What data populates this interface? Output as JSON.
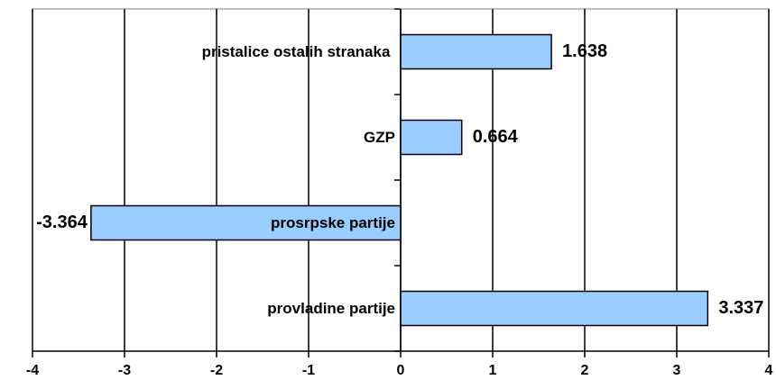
{
  "chart_data": {
    "type": "barh",
    "categories": [
      "pristalice ostalih stranaka",
      "GZP",
      "prosrpske partije",
      "provladine partije"
    ],
    "values": [
      1.638,
      0.664,
      -3.364,
      3.337
    ],
    "color": "#99ccff",
    "xlim": [
      -4,
      4
    ],
    "xticks": [
      -4,
      -3,
      -2,
      -1,
      0,
      1,
      2,
      3,
      4
    ],
    "grid": true
  }
}
